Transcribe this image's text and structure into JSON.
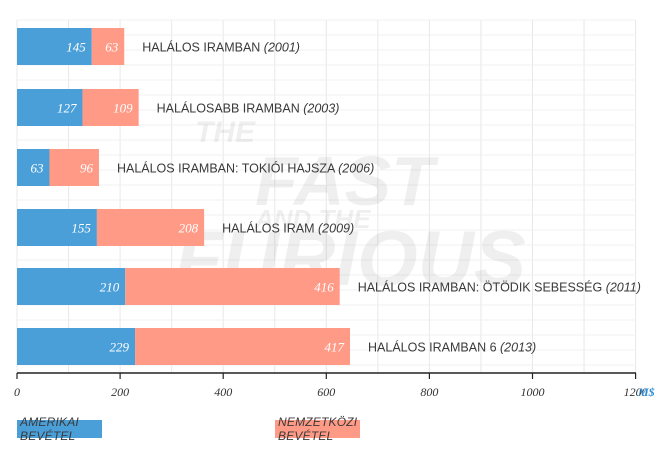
{
  "chart_data": {
    "type": "bar",
    "orientation": "horizontal",
    "stacked": true,
    "categories": [
      {
        "title": "HALÁLOS IRAMBAN",
        "year": "(2001)"
      },
      {
        "title": "HALÁLOSABB IRAMBAN",
        "year": "(2003)"
      },
      {
        "title": "HALÁLOS IRAMBAN: TOKIÓI HAJSZA",
        "year": "(2006)"
      },
      {
        "title": "HALÁLOS IRAM",
        "year": "(2009)"
      },
      {
        "title": "HALÁLOS IRAMBAN: ÖTÖDIK SEBESSÉG",
        "year": "(2011)"
      },
      {
        "title": "HALÁLOS IRAMBAN 6",
        "year": "(2013)"
      }
    ],
    "series": [
      {
        "name": "AMERIKAI BEVÉTEL",
        "color": "#4a9fd8",
        "values": [
          145,
          127,
          63,
          155,
          210,
          229
        ]
      },
      {
        "name": "NEMZETKÖZI BEVÉTEL",
        "color": "#ff9a87",
        "values": [
          63,
          109,
          96,
          208,
          416,
          417
        ]
      }
    ],
    "x_ticks": [
      "0",
      "200",
      "400",
      "600",
      "800",
      "1000",
      "1200"
    ],
    "xlim": [
      0,
      1200
    ],
    "unit": "M$",
    "unit_color": "#2e8fd6",
    "grid": true,
    "legend_position": "bottom"
  }
}
